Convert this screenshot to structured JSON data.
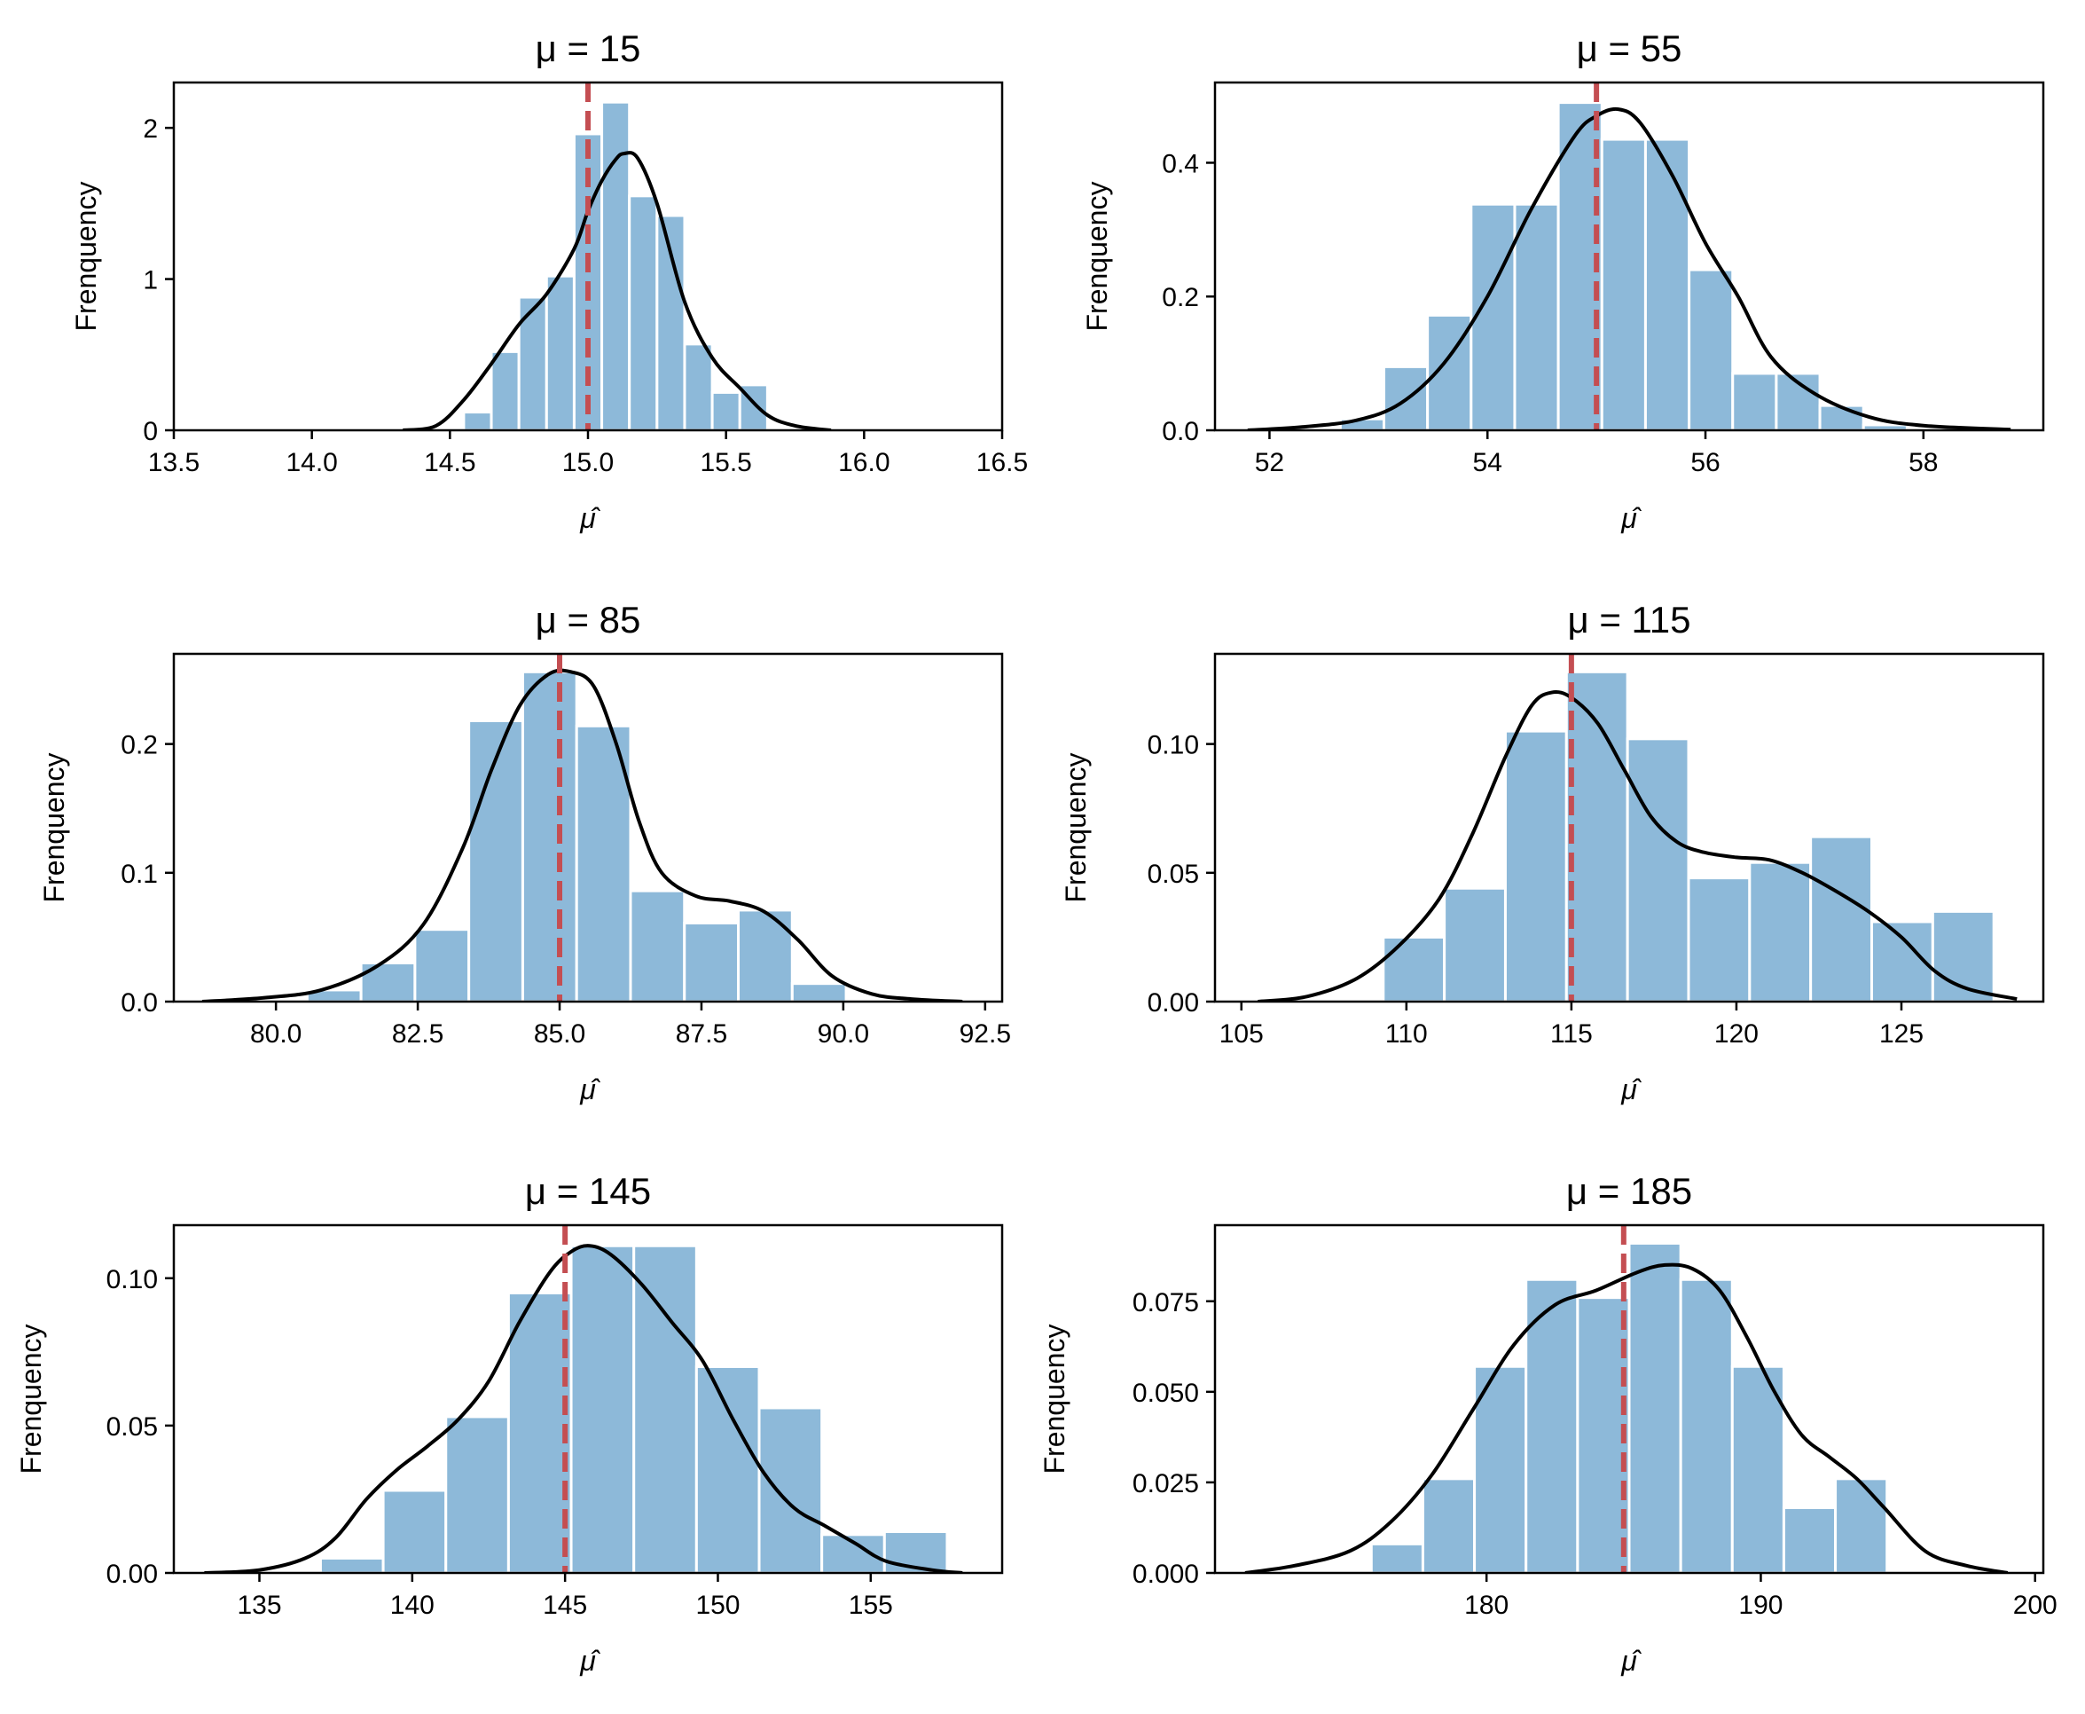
{
  "chart_data": [
    {
      "type": "bar",
      "title": "μ = 15",
      "xlabel": "μ̂",
      "ylabel": "Frenquency",
      "xlim": [
        13.5,
        16.5
      ],
      "ylim": [
        0,
        2.3
      ],
      "xticks": [
        13.5,
        14.0,
        14.5,
        15.0,
        15.5,
        16.0,
        16.5
      ],
      "xtick_labels": [
        "13.5",
        "14.0",
        "14.5",
        "15.0",
        "15.5",
        "16.0",
        "16.5"
      ],
      "yticks": [
        0,
        1,
        2
      ],
      "ytick_labels": [
        "0",
        "1",
        "2"
      ],
      "true_mean": 15,
      "bins": [
        {
          "x0": 14.55,
          "x1": 14.65,
          "value": 0.12
        },
        {
          "x0": 14.65,
          "x1": 14.75,
          "value": 0.52
        },
        {
          "x0": 14.75,
          "x1": 14.85,
          "value": 0.88
        },
        {
          "x0": 14.85,
          "x1": 14.95,
          "value": 1.02
        },
        {
          "x0": 14.95,
          "x1": 15.05,
          "value": 1.96
        },
        {
          "x0": 15.05,
          "x1": 15.15,
          "value": 2.17
        },
        {
          "x0": 15.15,
          "x1": 15.25,
          "value": 1.55
        },
        {
          "x0": 15.25,
          "x1": 15.35,
          "value": 1.42
        },
        {
          "x0": 15.35,
          "x1": 15.45,
          "value": 0.57
        },
        {
          "x0": 15.45,
          "x1": 15.55,
          "value": 0.25
        },
        {
          "x0": 15.55,
          "x1": 15.65,
          "value": 0.3
        }
      ],
      "kde": [
        [
          14.33,
          0
        ],
        [
          14.45,
          0.03
        ],
        [
          14.55,
          0.2
        ],
        [
          14.65,
          0.44
        ],
        [
          14.75,
          0.7
        ],
        [
          14.85,
          0.9
        ],
        [
          14.95,
          1.2
        ],
        [
          15.0,
          1.45
        ],
        [
          15.05,
          1.65
        ],
        [
          15.1,
          1.79
        ],
        [
          15.13,
          1.83
        ],
        [
          15.18,
          1.8
        ],
        [
          15.25,
          1.5
        ],
        [
          15.35,
          0.85
        ],
        [
          15.45,
          0.48
        ],
        [
          15.55,
          0.28
        ],
        [
          15.65,
          0.1
        ],
        [
          15.75,
          0.03
        ],
        [
          15.88,
          0
        ]
      ]
    },
    {
      "type": "bar",
      "title": "μ = 55",
      "xlabel": "μ̂",
      "ylabel": "Frenquency",
      "xlim": [
        51.5,
        59.1
      ],
      "ylim": [
        0,
        0.52
      ],
      "xticks": [
        52,
        54,
        56,
        58
      ],
      "xtick_labels": [
        "52",
        "54",
        "56",
        "58"
      ],
      "yticks": [
        0,
        0.2,
        0.4
      ],
      "ytick_labels": [
        "0.0",
        "0.2",
        "0.4"
      ],
      "true_mean": 55,
      "bins": [
        {
          "x0": 52.65,
          "x1": 53.05,
          "value": 0.017
        },
        {
          "x0": 53.05,
          "x1": 53.45,
          "value": 0.095
        },
        {
          "x0": 53.45,
          "x1": 53.85,
          "value": 0.172
        },
        {
          "x0": 53.85,
          "x1": 54.25,
          "value": 0.338
        },
        {
          "x0": 54.25,
          "x1": 54.65,
          "value": 0.338
        },
        {
          "x0": 54.65,
          "x1": 55.05,
          "value": 0.49
        },
        {
          "x0": 55.05,
          "x1": 55.45,
          "value": 0.435
        },
        {
          "x0": 55.45,
          "x1": 55.85,
          "value": 0.435
        },
        {
          "x0": 55.85,
          "x1": 56.25,
          "value": 0.24
        },
        {
          "x0": 56.25,
          "x1": 56.65,
          "value": 0.085
        },
        {
          "x0": 56.65,
          "x1": 57.05,
          "value": 0.085
        },
        {
          "x0": 57.05,
          "x1": 57.45,
          "value": 0.037
        },
        {
          "x0": 57.45,
          "x1": 57.85,
          "value": 0.008
        }
      ],
      "kde": [
        [
          51.8,
          0
        ],
        [
          52.3,
          0.005
        ],
        [
          52.8,
          0.015
        ],
        [
          53.2,
          0.04
        ],
        [
          53.6,
          0.1
        ],
        [
          54.0,
          0.2
        ],
        [
          54.4,
          0.33
        ],
        [
          54.8,
          0.44
        ],
        [
          55.0,
          0.47
        ],
        [
          55.2,
          0.48
        ],
        [
          55.4,
          0.46
        ],
        [
          55.7,
          0.38
        ],
        [
          56.0,
          0.28
        ],
        [
          56.3,
          0.2
        ],
        [
          56.6,
          0.11
        ],
        [
          57.0,
          0.055
        ],
        [
          57.5,
          0.02
        ],
        [
          58.0,
          0.007
        ],
        [
          58.8,
          0.001
        ]
      ]
    },
    {
      "type": "bar",
      "title": "μ = 85",
      "xlabel": "μ̂",
      "ylabel": "Frenquency",
      "xlim": [
        78.2,
        92.8
      ],
      "ylim": [
        0,
        0.27
      ],
      "xticks": [
        80.0,
        82.5,
        85.0,
        87.5,
        90.0,
        92.5
      ],
      "xtick_labels": [
        "80.0",
        "82.5",
        "85.0",
        "87.5",
        "90.0",
        "92.5"
      ],
      "yticks": [
        0,
        0.1,
        0.2
      ],
      "ytick_labels": [
        "0.0",
        "0.1",
        "0.2"
      ],
      "true_mean": 85,
      "bins": [
        {
          "x0": 80.55,
          "x1": 81.5,
          "value": 0.009
        },
        {
          "x0": 81.5,
          "x1": 82.45,
          "value": 0.03
        },
        {
          "x0": 82.45,
          "x1": 83.4,
          "value": 0.056
        },
        {
          "x0": 83.4,
          "x1": 84.35,
          "value": 0.218
        },
        {
          "x0": 84.35,
          "x1": 85.3,
          "value": 0.256
        },
        {
          "x0": 85.3,
          "x1": 86.25,
          "value": 0.214
        },
        {
          "x0": 86.25,
          "x1": 87.2,
          "value": 0.086
        },
        {
          "x0": 87.2,
          "x1": 88.15,
          "value": 0.061
        },
        {
          "x0": 88.15,
          "x1": 89.1,
          "value": 0.071
        },
        {
          "x0": 89.1,
          "x1": 90.05,
          "value": 0.014
        }
      ],
      "kde": [
        [
          78.7,
          0
        ],
        [
          79.8,
          0.003
        ],
        [
          80.8,
          0.009
        ],
        [
          81.8,
          0.028
        ],
        [
          82.6,
          0.06
        ],
        [
          83.3,
          0.12
        ],
        [
          83.8,
          0.18
        ],
        [
          84.3,
          0.23
        ],
        [
          84.8,
          0.254
        ],
        [
          85.2,
          0.256
        ],
        [
          85.6,
          0.245
        ],
        [
          86.0,
          0.2
        ],
        [
          86.4,
          0.14
        ],
        [
          86.8,
          0.1
        ],
        [
          87.4,
          0.082
        ],
        [
          88.0,
          0.078
        ],
        [
          88.6,
          0.07
        ],
        [
          89.2,
          0.048
        ],
        [
          89.8,
          0.02
        ],
        [
          90.5,
          0.006
        ],
        [
          91.2,
          0.002
        ],
        [
          92.1,
          0
        ]
      ]
    },
    {
      "type": "bar",
      "title": "μ = 115",
      "xlabel": "μ̂",
      "ylabel": "Frenquency",
      "xlim": [
        104.2,
        129.3
      ],
      "ylim": [
        0,
        0.135
      ],
      "xticks": [
        105,
        110,
        115,
        120,
        125
      ],
      "xtick_labels": [
        "105",
        "110",
        "115",
        "120",
        "125"
      ],
      "yticks": [
        0,
        0.05,
        0.1
      ],
      "ytick_labels": [
        "0.00",
        "0.05",
        "0.10"
      ],
      "true_mean": 115,
      "bins": [
        {
          "x0": 109.3,
          "x1": 111.15,
          "value": 0.025
        },
        {
          "x0": 111.15,
          "x1": 113.0,
          "value": 0.044
        },
        {
          "x0": 113.0,
          "x1": 114.85,
          "value": 0.105
        },
        {
          "x0": 114.85,
          "x1": 116.7,
          "value": 0.128
        },
        {
          "x0": 116.7,
          "x1": 118.55,
          "value": 0.102
        },
        {
          "x0": 118.55,
          "x1": 120.4,
          "value": 0.048
        },
        {
          "x0": 120.4,
          "x1": 122.25,
          "value": 0.054
        },
        {
          "x0": 122.25,
          "x1": 124.1,
          "value": 0.064
        },
        {
          "x0": 124.1,
          "x1": 125.95,
          "value": 0.031
        },
        {
          "x0": 125.95,
          "x1": 127.8,
          "value": 0.035
        }
      ],
      "kde": [
        [
          105.5,
          0
        ],
        [
          107.0,
          0.002
        ],
        [
          108.5,
          0.009
        ],
        [
          109.8,
          0.022
        ],
        [
          111.0,
          0.04
        ],
        [
          112.0,
          0.065
        ],
        [
          113.0,
          0.095
        ],
        [
          113.8,
          0.115
        ],
        [
          114.4,
          0.12
        ],
        [
          115.0,
          0.118
        ],
        [
          115.8,
          0.108
        ],
        [
          116.6,
          0.09
        ],
        [
          117.4,
          0.072
        ],
        [
          118.2,
          0.062
        ],
        [
          119.0,
          0.058
        ],
        [
          120.0,
          0.056
        ],
        [
          121.0,
          0.055
        ],
        [
          122.0,
          0.05
        ],
        [
          123.0,
          0.043
        ],
        [
          124.0,
          0.035
        ],
        [
          125.0,
          0.025
        ],
        [
          126.0,
          0.012
        ],
        [
          127.0,
          0.005
        ],
        [
          128.5,
          0.001
        ]
      ]
    },
    {
      "type": "bar",
      "title": "μ = 145",
      "xlabel": "μ̂",
      "ylabel": "Frenquency",
      "xlim": [
        132.2,
        159.3
      ],
      "ylim": [
        0,
        0.118
      ],
      "xticks": [
        135,
        140,
        145,
        150,
        155
      ],
      "xtick_labels": [
        "135",
        "140",
        "145",
        "150",
        "155"
      ],
      "yticks": [
        0,
        0.05,
        0.1
      ],
      "ytick_labels": [
        "0.00",
        "0.05",
        "0.10"
      ],
      "true_mean": 145,
      "bins": [
        {
          "x0": 137.0,
          "x1": 139.05,
          "value": 0.005
        },
        {
          "x0": 139.05,
          "x1": 141.1,
          "value": 0.028
        },
        {
          "x0": 141.1,
          "x1": 143.15,
          "value": 0.053
        },
        {
          "x0": 143.15,
          "x1": 145.2,
          "value": 0.095
        },
        {
          "x0": 145.2,
          "x1": 147.25,
          "value": 0.111
        },
        {
          "x0": 147.25,
          "x1": 149.3,
          "value": 0.111
        },
        {
          "x0": 149.3,
          "x1": 151.35,
          "value": 0.07
        },
        {
          "x0": 151.35,
          "x1": 153.4,
          "value": 0.056
        },
        {
          "x0": 153.4,
          "x1": 155.45,
          "value": 0.013
        },
        {
          "x0": 155.45,
          "x1": 157.5,
          "value": 0.014
        }
      ],
      "kde": [
        [
          133.2,
          0
        ],
        [
          135.0,
          0.001
        ],
        [
          136.5,
          0.005
        ],
        [
          137.5,
          0.012
        ],
        [
          138.5,
          0.025
        ],
        [
          139.5,
          0.035
        ],
        [
          140.5,
          0.043
        ],
        [
          141.5,
          0.052
        ],
        [
          142.5,
          0.065
        ],
        [
          143.5,
          0.085
        ],
        [
          144.5,
          0.102
        ],
        [
          145.2,
          0.109
        ],
        [
          145.8,
          0.111
        ],
        [
          146.5,
          0.108
        ],
        [
          147.5,
          0.098
        ],
        [
          148.5,
          0.085
        ],
        [
          149.5,
          0.072
        ],
        [
          150.5,
          0.052
        ],
        [
          151.5,
          0.034
        ],
        [
          152.5,
          0.022
        ],
        [
          153.5,
          0.016
        ],
        [
          154.5,
          0.01
        ],
        [
          155.5,
          0.004
        ],
        [
          157.0,
          0.001
        ],
        [
          158.0,
          0
        ]
      ]
    },
    {
      "type": "bar",
      "title": "μ = 185",
      "xlabel": "μ̂",
      "ylabel": "Frenquency",
      "xlim": [
        170.1,
        200.3
      ],
      "ylim": [
        0,
        0.096
      ],
      "xticks": [
        180,
        190,
        200
      ],
      "xtick_labels": [
        "180",
        "190",
        "200"
      ],
      "yticks": [
        0,
        0.025,
        0.05,
        0.075
      ],
      "ytick_labels": [
        "0.000",
        "0.025",
        "0.050",
        "0.075"
      ],
      "true_mean": 185,
      "bins": [
        {
          "x0": 175.8,
          "x1": 177.68,
          "value": 0.008
        },
        {
          "x0": 177.68,
          "x1": 179.56,
          "value": 0.026
        },
        {
          "x0": 179.56,
          "x1": 181.44,
          "value": 0.057
        },
        {
          "x0": 181.44,
          "x1": 183.32,
          "value": 0.081
        },
        {
          "x0": 183.32,
          "x1": 185.2,
          "value": 0.076
        },
        {
          "x0": 185.2,
          "x1": 187.08,
          "value": 0.091
        },
        {
          "x0": 187.08,
          "x1": 188.96,
          "value": 0.081
        },
        {
          "x0": 188.96,
          "x1": 190.84,
          "value": 0.057
        },
        {
          "x0": 190.84,
          "x1": 192.72,
          "value": 0.018
        },
        {
          "x0": 192.72,
          "x1": 194.6,
          "value": 0.026
        }
      ],
      "kde": [
        [
          171.2,
          0
        ],
        [
          173.0,
          0.002
        ],
        [
          175.0,
          0.006
        ],
        [
          176.5,
          0.014
        ],
        [
          178.0,
          0.027
        ],
        [
          179.5,
          0.045
        ],
        [
          181.0,
          0.063
        ],
        [
          182.5,
          0.074
        ],
        [
          184.0,
          0.078
        ],
        [
          185.5,
          0.083
        ],
        [
          186.5,
          0.085
        ],
        [
          187.5,
          0.084
        ],
        [
          188.5,
          0.078
        ],
        [
          189.5,
          0.065
        ],
        [
          190.5,
          0.05
        ],
        [
          191.5,
          0.038
        ],
        [
          192.5,
          0.032
        ],
        [
          193.5,
          0.026
        ],
        [
          194.5,
          0.018
        ],
        [
          196.0,
          0.006
        ],
        [
          197.5,
          0.002
        ],
        [
          199.0,
          0
        ]
      ]
    }
  ]
}
